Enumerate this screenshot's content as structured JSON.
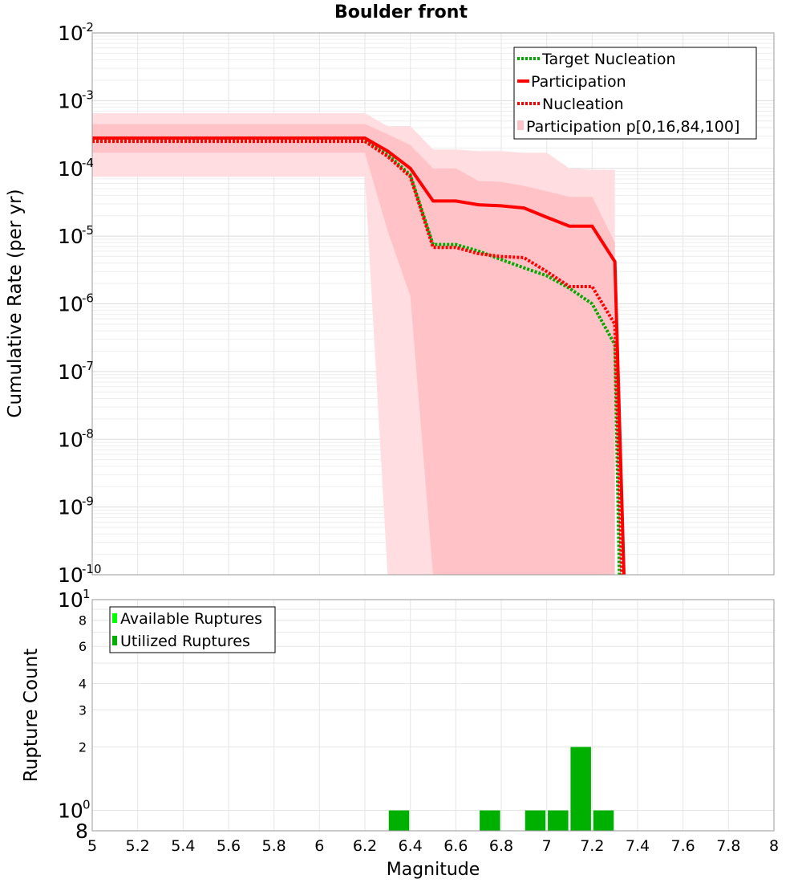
{
  "chart_data": [
    {
      "type": "line",
      "title": "Boulder front",
      "ylabel": "Cumulative Rate (per yr)",
      "xlabel": "",
      "xlim": [
        5,
        8
      ],
      "ylim": [
        1e-10,
        0.01
      ],
      "yscale": "log",
      "grid": true,
      "legend_position": "top-right",
      "yticks": [
        {
          "base": "10",
          "exp": "-2"
        },
        {
          "base": "10",
          "exp": "-3"
        },
        {
          "base": "10",
          "exp": "-4"
        },
        {
          "base": "10",
          "exp": "-5"
        },
        {
          "base": "10",
          "exp": "-6"
        },
        {
          "base": "10",
          "exp": "-7"
        },
        {
          "base": "10",
          "exp": "-8"
        },
        {
          "base": "10",
          "exp": "-9"
        },
        {
          "base": "10",
          "exp": "-10"
        }
      ],
      "series": [
        {
          "name": "Target Nucleation",
          "style": "dotted",
          "color": "#00aa00",
          "x": [
            5.0,
            6.2,
            6.3,
            6.4,
            6.5,
            6.6,
            6.7,
            6.8,
            6.9,
            7.0,
            7.1,
            7.2,
            7.3,
            7.32
          ],
          "y": [
            0.00026,
            0.00026,
            0.00016,
            8e-05,
            7.5e-06,
            7.5e-06,
            6e-06,
            4.5e-06,
            3.4e-06,
            2.6e-06,
            1.7e-06,
            1e-06,
            2.5e-07,
            1e-10
          ]
        },
        {
          "name": "Participation",
          "style": "solid",
          "color": "#ff0000",
          "x": [
            5.0,
            6.2,
            6.3,
            6.4,
            6.5,
            6.6,
            6.7,
            6.8,
            6.9,
            7.0,
            7.1,
            7.2,
            7.3,
            7.34
          ],
          "y": [
            0.00028,
            0.00028,
            0.00018,
            0.0001,
            3.3e-05,
            3.3e-05,
            2.9e-05,
            2.8e-05,
            2.6e-05,
            1.9e-05,
            1.4e-05,
            1.4e-05,
            4.2e-06,
            1e-10
          ]
        },
        {
          "name": "Nucleation",
          "style": "dotted",
          "color": "#ff0000",
          "x": [
            5.0,
            6.2,
            6.3,
            6.4,
            6.5,
            6.6,
            6.7,
            6.8,
            6.9,
            7.0,
            7.1,
            7.2,
            7.3,
            7.33
          ],
          "y": [
            0.00025,
            0.00025,
            0.00015,
            7.5e-05,
            6.8e-06,
            6.8e-06,
            5.5e-06,
            5e-06,
            4.8e-06,
            3e-06,
            1.8e-06,
            1.8e-06,
            5e-07,
            1e-10
          ]
        }
      ],
      "bands": [
        {
          "name": "Participation p[0,16,84,100]",
          "kind": "outer",
          "color": "#ffdde0",
          "x": [
            5.0,
            6.2,
            6.3,
            6.4,
            6.5,
            6.6,
            6.7,
            6.8,
            6.9,
            7.0,
            7.1,
            7.2,
            7.3
          ],
          "upper": [
            0.00065,
            0.00065,
            0.00042,
            0.00042,
            0.00019,
            0.00019,
            0.00018,
            0.00018,
            0.00017,
            0.00017,
            0.0001,
            9.5e-05,
            9.5e-05
          ],
          "lower": [
            7.5e-05,
            7.5e-05,
            1e-10,
            1e-10,
            1e-10,
            1e-10,
            1e-10,
            1e-10,
            1e-10,
            1e-10,
            1e-10,
            1e-10,
            1e-10
          ]
        },
        {
          "kind": "inner",
          "color": "#ffc2c6",
          "x": [
            5.0,
            6.2,
            6.3,
            6.4,
            6.5,
            6.6,
            6.7,
            6.8,
            6.9,
            7.0,
            7.1,
            7.2,
            7.3
          ],
          "upper": [
            0.00045,
            0.00045,
            0.00032,
            0.00022,
            0.0001,
            0.0001,
            6.5e-05,
            6.3e-05,
            5.5e-05,
            4.6e-05,
            3.8e-05,
            3.8e-05,
            8e-06
          ],
          "lower": [
            0.00017,
            0.00017,
            1.2e-05,
            1.3e-06,
            1e-10,
            1e-10,
            1e-10,
            1e-10,
            1e-10,
            1e-10,
            1e-10,
            1e-10,
            1e-10
          ]
        }
      ]
    },
    {
      "type": "bar",
      "ylabel": "Rupture Count",
      "xlabel": "Magnitude",
      "xlim": [
        5,
        8
      ],
      "ylim": [
        0.8,
        10
      ],
      "yscale": "log",
      "grid": true,
      "legend_position": "top-left",
      "xticks": [
        "5",
        "5.2",
        "5.4",
        "5.6",
        "5.8",
        "6",
        "6.2",
        "6.4",
        "6.6",
        "6.8",
        "7",
        "7.2",
        "7.4",
        "7.6",
        "7.8",
        "8"
      ],
      "ytick_labels": {
        "top_base": "10",
        "top_exp": "1",
        "minor": [
          "8",
          "6",
          "4",
          "3",
          "2"
        ],
        "bottom_base": "10",
        "bottom_exp": "0",
        "bottom": "8"
      },
      "legend": [
        {
          "name": "Available Ruptures",
          "color": "#00ff00"
        },
        {
          "name": "Utilized Ruptures",
          "color": "#00b000"
        }
      ],
      "bars": [
        {
          "x": 6.35,
          "value": 1
        },
        {
          "x": 6.75,
          "value": 1
        },
        {
          "x": 6.95,
          "value": 1
        },
        {
          "x": 7.05,
          "value": 1
        },
        {
          "x": 7.15,
          "value": 2
        },
        {
          "x": 7.25,
          "value": 1
        }
      ],
      "bar_width": 0.09,
      "bar_color": "#00b000"
    }
  ]
}
